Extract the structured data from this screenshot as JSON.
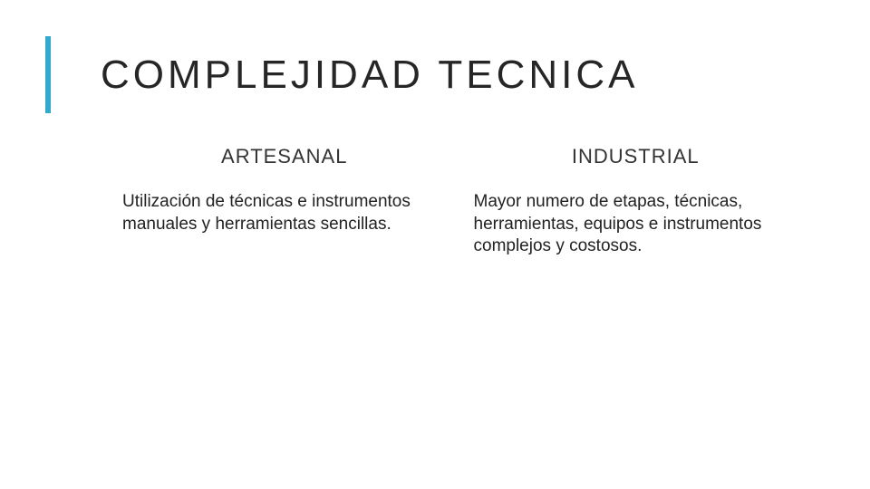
{
  "slide": {
    "title": "COMPLEJIDAD TECNICA",
    "title_fontsize": 44,
    "title_letter_spacing": 4,
    "accent_bar_color": "#33aacc",
    "accent_bar_width": 6,
    "accent_bar_height": 85,
    "background_color": "#ffffff",
    "text_color": "#262626",
    "columns": [
      {
        "heading": "ARTESANAL",
        "body": "Utilización de técnicas e instrumentos manuales y herramientas sencillas."
      },
      {
        "heading": "INDUSTRIAL",
        "body": "Mayor numero de etapas, técnicas, herramientas, equipos e instrumentos complejos y costosos."
      }
    ],
    "heading_fontsize": 22,
    "body_fontsize": 19
  }
}
